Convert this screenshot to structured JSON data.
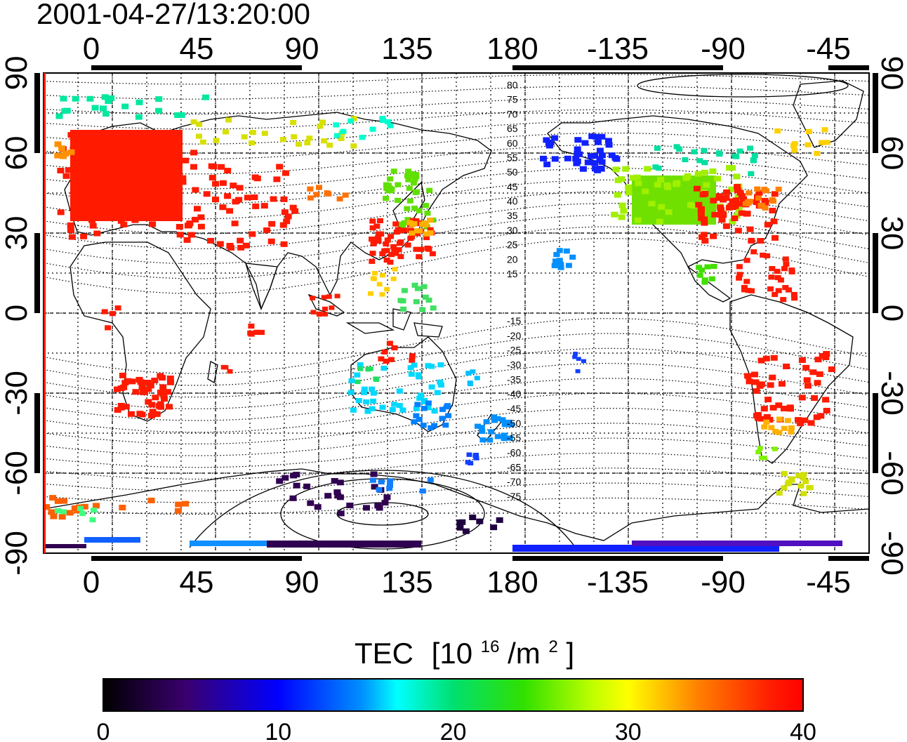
{
  "timestamp": "2001-04-27/13:20:00",
  "colorbar": {
    "title": "TEC",
    "unit_prefix": "[10",
    "unit_exp": "16",
    "unit_mid": "/m",
    "unit_exp2": "2",
    "unit_suffix": "]",
    "range": [
      0,
      40
    ],
    "ticks": [
      "0",
      "10",
      "20",
      "30",
      "40"
    ]
  },
  "map": {
    "projection": "cylindrical",
    "lon_center": 180,
    "lon_ticks": [
      "0",
      "45",
      "90",
      "135",
      "180",
      "-135",
      "-90",
      "-45"
    ],
    "lat_ticks": [
      "90",
      "60",
      "30",
      "0",
      "-30",
      "-60",
      "-90"
    ],
    "grid": "dotted",
    "magnetic_latitude_labels": [
      "80",
      "75",
      "70",
      "65",
      "60",
      "55",
      "50",
      "45",
      "40",
      "35",
      "30",
      "25",
      "20",
      "15",
      "-15",
      "-20",
      "-25",
      "-30",
      "-35",
      "-40",
      "-45",
      "-50",
      "-55",
      "-60",
      "-65",
      "-70",
      "-75"
    ]
  },
  "colors": {
    "tec_high": "#ff1a00",
    "tec_mid": "#00e000",
    "tec_low": "#1010ff",
    "tec_min": "#300050"
  }
}
